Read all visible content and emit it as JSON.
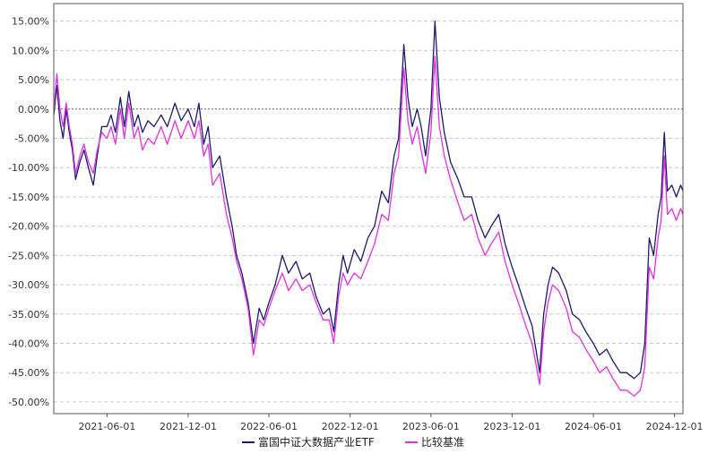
{
  "chart_data": {
    "type": "line",
    "y_unit": "%",
    "ylim": [
      -52,
      18
    ],
    "y_ticks": [
      "15.00%",
      "10.00%",
      "5.00%",
      "0.00%",
      "-5.00%",
      "-10.00%",
      "-15.00%",
      "-20.00%",
      "-25.00%",
      "-30.00%",
      "-35.00%",
      "-40.00%",
      "-45.00%",
      "-50.00%"
    ],
    "x_ticks": [
      "2021-06-01",
      "2021-12-01",
      "2022-06-01",
      "2022-12-01",
      "2023-06-01",
      "2023-12-01",
      "2024-06-01",
      "2024-12-01"
    ],
    "xlim": [
      "2021-02-01",
      "2024-12-20"
    ],
    "grid": true,
    "legend_position": "bottom",
    "series": [
      {
        "name": "富国中证大数据产业ETF",
        "color": "#1a1a6e",
        "points": [
          [
            "2021-02-01",
            -1
          ],
          [
            "2021-02-08",
            4
          ],
          [
            "2021-02-15",
            -2
          ],
          [
            "2021-02-22",
            -5
          ],
          [
            "2021-03-01",
            0
          ],
          [
            "2021-03-08",
            -4
          ],
          [
            "2021-03-15",
            -7
          ],
          [
            "2021-03-22",
            -12
          ],
          [
            "2021-04-01",
            -9
          ],
          [
            "2021-04-10",
            -7
          ],
          [
            "2021-04-20",
            -10
          ],
          [
            "2021-05-01",
            -13
          ],
          [
            "2021-05-10",
            -8
          ],
          [
            "2021-05-20",
            -3
          ],
          [
            "2021-06-01",
            -3
          ],
          [
            "2021-06-10",
            -1
          ],
          [
            "2021-06-20",
            -4
          ],
          [
            "2021-07-01",
            2
          ],
          [
            "2021-07-10",
            -3
          ],
          [
            "2021-07-20",
            3
          ],
          [
            "2021-08-01",
            -3
          ],
          [
            "2021-08-10",
            -1
          ],
          [
            "2021-08-20",
            -4
          ],
          [
            "2021-09-01",
            -2
          ],
          [
            "2021-09-15",
            -3
          ],
          [
            "2021-10-01",
            -1
          ],
          [
            "2021-10-15",
            -3
          ],
          [
            "2021-11-01",
            1
          ],
          [
            "2021-11-15",
            -2
          ],
          [
            "2021-12-01",
            0
          ],
          [
            "2021-12-15",
            -3
          ],
          [
            "2021-12-25",
            1
          ],
          [
            "2022-01-05",
            -6
          ],
          [
            "2022-01-15",
            -3
          ],
          [
            "2022-01-25",
            -10
          ],
          [
            "2022-02-10",
            -8
          ],
          [
            "2022-02-25",
            -15
          ],
          [
            "2022-03-10",
            -20
          ],
          [
            "2022-03-20",
            -25
          ],
          [
            "2022-04-01",
            -28
          ],
          [
            "2022-04-15",
            -33
          ],
          [
            "2022-04-27",
            -40
          ],
          [
            "2022-05-10",
            -34
          ],
          [
            "2022-05-20",
            -36
          ],
          [
            "2022-06-01",
            -33
          ],
          [
            "2022-06-15",
            -30
          ],
          [
            "2022-07-01",
            -25
          ],
          [
            "2022-07-15",
            -28
          ],
          [
            "2022-08-01",
            -26
          ],
          [
            "2022-08-15",
            -29
          ],
          [
            "2022-09-01",
            -28
          ],
          [
            "2022-09-15",
            -32
          ],
          [
            "2022-10-01",
            -35
          ],
          [
            "2022-10-15",
            -34
          ],
          [
            "2022-10-25",
            -38
          ],
          [
            "2022-11-05",
            -30
          ],
          [
            "2022-11-15",
            -25
          ],
          [
            "2022-11-25",
            -28
          ],
          [
            "2022-12-10",
            -24
          ],
          [
            "2022-12-25",
            -26
          ],
          [
            "2023-01-10",
            -22
          ],
          [
            "2023-01-25",
            -20
          ],
          [
            "2023-02-10",
            -14
          ],
          [
            "2023-02-25",
            -16
          ],
          [
            "2023-03-10",
            -8
          ],
          [
            "2023-03-20",
            -5
          ],
          [
            "2023-04-01",
            11
          ],
          [
            "2023-04-10",
            2
          ],
          [
            "2023-04-20",
            -3
          ],
          [
            "2023-05-01",
            0
          ],
          [
            "2023-05-10",
            -3
          ],
          [
            "2023-05-20",
            -8
          ],
          [
            "2023-06-01",
            0
          ],
          [
            "2023-06-10",
            15
          ],
          [
            "2023-06-20",
            2
          ],
          [
            "2023-07-01",
            -4
          ],
          [
            "2023-07-15",
            -9
          ],
          [
            "2023-08-01",
            -12
          ],
          [
            "2023-08-15",
            -15
          ],
          [
            "2023-09-01",
            -15
          ],
          [
            "2023-09-15",
            -19
          ],
          [
            "2023-10-01",
            -22
          ],
          [
            "2023-10-15",
            -20
          ],
          [
            "2023-11-01",
            -18
          ],
          [
            "2023-11-15",
            -23
          ],
          [
            "2023-12-01",
            -27
          ],
          [
            "2023-12-15",
            -30
          ],
          [
            "2024-01-01",
            -34
          ],
          [
            "2024-01-15",
            -37
          ],
          [
            "2024-02-01",
            -45
          ],
          [
            "2024-02-10",
            -35
          ],
          [
            "2024-02-20",
            -30
          ],
          [
            "2024-03-01",
            -27
          ],
          [
            "2024-03-15",
            -28
          ],
          [
            "2024-04-01",
            -31
          ],
          [
            "2024-04-15",
            -35
          ],
          [
            "2024-05-01",
            -36
          ],
          [
            "2024-05-15",
            -38
          ],
          [
            "2024-06-01",
            -40
          ],
          [
            "2024-06-15",
            -42
          ],
          [
            "2024-07-01",
            -41
          ],
          [
            "2024-07-15",
            -43
          ],
          [
            "2024-08-01",
            -45
          ],
          [
            "2024-08-15",
            -45
          ],
          [
            "2024-09-01",
            -46
          ],
          [
            "2024-09-15",
            -45
          ],
          [
            "2024-09-25",
            -40
          ],
          [
            "2024-10-05",
            -22
          ],
          [
            "2024-10-15",
            -25
          ],
          [
            "2024-10-25",
            -18
          ],
          [
            "2024-11-01",
            -15
          ],
          [
            "2024-11-08",
            -4
          ],
          [
            "2024-11-15",
            -14
          ],
          [
            "2024-11-25",
            -13
          ],
          [
            "2024-12-05",
            -15
          ],
          [
            "2024-12-15",
            -13
          ],
          [
            "2024-12-20",
            -14
          ]
        ]
      },
      {
        "name": "比较基准",
        "color": "#e52de5",
        "points": [
          [
            "2021-02-01",
            0
          ],
          [
            "2021-02-08",
            6
          ],
          [
            "2021-02-15",
            0
          ],
          [
            "2021-02-22",
            -3
          ],
          [
            "2021-03-01",
            1
          ],
          [
            "2021-03-08",
            -3
          ],
          [
            "2021-03-15",
            -6
          ],
          [
            "2021-03-22",
            -11
          ],
          [
            "2021-04-01",
            -8
          ],
          [
            "2021-04-10",
            -6
          ],
          [
            "2021-04-20",
            -9
          ],
          [
            "2021-05-01",
            -11
          ],
          [
            "2021-05-10",
            -7
          ],
          [
            "2021-05-20",
            -4
          ],
          [
            "2021-06-01",
            -5
          ],
          [
            "2021-06-10",
            -3
          ],
          [
            "2021-06-20",
            -6
          ],
          [
            "2021-07-01",
            0
          ],
          [
            "2021-07-10",
            -5
          ],
          [
            "2021-07-20",
            1
          ],
          [
            "2021-08-01",
            -5
          ],
          [
            "2021-08-10",
            -3
          ],
          [
            "2021-08-20",
            -7
          ],
          [
            "2021-09-01",
            -5
          ],
          [
            "2021-09-15",
            -6
          ],
          [
            "2021-10-01",
            -3
          ],
          [
            "2021-10-15",
            -6
          ],
          [
            "2021-11-01",
            -2
          ],
          [
            "2021-11-15",
            -5
          ],
          [
            "2021-12-01",
            -2
          ],
          [
            "2021-12-15",
            -5
          ],
          [
            "2021-12-25",
            -2
          ],
          [
            "2022-01-05",
            -8
          ],
          [
            "2022-01-15",
            -6
          ],
          [
            "2022-01-25",
            -13
          ],
          [
            "2022-02-10",
            -11
          ],
          [
            "2022-02-25",
            -18
          ],
          [
            "2022-03-10",
            -22
          ],
          [
            "2022-03-20",
            -26
          ],
          [
            "2022-04-01",
            -29
          ],
          [
            "2022-04-15",
            -34
          ],
          [
            "2022-04-27",
            -42
          ],
          [
            "2022-05-10",
            -36
          ],
          [
            "2022-05-20",
            -37
          ],
          [
            "2022-06-01",
            -34
          ],
          [
            "2022-06-15",
            -31
          ],
          [
            "2022-07-01",
            -28
          ],
          [
            "2022-07-15",
            -31
          ],
          [
            "2022-08-01",
            -29
          ],
          [
            "2022-08-15",
            -31
          ],
          [
            "2022-09-01",
            -30
          ],
          [
            "2022-09-15",
            -33
          ],
          [
            "2022-10-01",
            -36
          ],
          [
            "2022-10-15",
            -36
          ],
          [
            "2022-10-25",
            -40
          ],
          [
            "2022-11-05",
            -32
          ],
          [
            "2022-11-15",
            -28
          ],
          [
            "2022-11-25",
            -30
          ],
          [
            "2022-12-10",
            -28
          ],
          [
            "2022-12-25",
            -29
          ],
          [
            "2023-01-10",
            -26
          ],
          [
            "2023-01-25",
            -23
          ],
          [
            "2023-02-10",
            -18
          ],
          [
            "2023-02-25",
            -19
          ],
          [
            "2023-03-10",
            -11
          ],
          [
            "2023-03-20",
            -8
          ],
          [
            "2023-04-01",
            7
          ],
          [
            "2023-04-10",
            -2
          ],
          [
            "2023-04-20",
            -6
          ],
          [
            "2023-05-01",
            -3
          ],
          [
            "2023-05-10",
            -7
          ],
          [
            "2023-05-20",
            -11
          ],
          [
            "2023-06-01",
            -4
          ],
          [
            "2023-06-10",
            9
          ],
          [
            "2023-06-20",
            -3
          ],
          [
            "2023-07-01",
            -8
          ],
          [
            "2023-07-15",
            -12
          ],
          [
            "2023-08-01",
            -16
          ],
          [
            "2023-08-15",
            -19
          ],
          [
            "2023-09-01",
            -18
          ],
          [
            "2023-09-15",
            -22
          ],
          [
            "2023-10-01",
            -25
          ],
          [
            "2023-10-15",
            -23
          ],
          [
            "2023-11-01",
            -21
          ],
          [
            "2023-11-15",
            -26
          ],
          [
            "2023-12-01",
            -30
          ],
          [
            "2023-12-15",
            -33
          ],
          [
            "2024-01-01",
            -37
          ],
          [
            "2024-01-15",
            -40
          ],
          [
            "2024-02-01",
            -47
          ],
          [
            "2024-02-10",
            -38
          ],
          [
            "2024-02-20",
            -33
          ],
          [
            "2024-03-01",
            -30
          ],
          [
            "2024-03-15",
            -31
          ],
          [
            "2024-04-01",
            -34
          ],
          [
            "2024-04-15",
            -38
          ],
          [
            "2024-05-01",
            -39
          ],
          [
            "2024-05-15",
            -41
          ],
          [
            "2024-06-01",
            -43
          ],
          [
            "2024-06-15",
            -45
          ],
          [
            "2024-07-01",
            -44
          ],
          [
            "2024-07-15",
            -46
          ],
          [
            "2024-08-01",
            -48
          ],
          [
            "2024-08-15",
            -48
          ],
          [
            "2024-09-01",
            -49
          ],
          [
            "2024-09-15",
            -48
          ],
          [
            "2024-09-25",
            -44
          ],
          [
            "2024-10-05",
            -27
          ],
          [
            "2024-10-15",
            -29
          ],
          [
            "2024-10-25",
            -22
          ],
          [
            "2024-11-01",
            -19
          ],
          [
            "2024-11-08",
            -8
          ],
          [
            "2024-11-15",
            -18
          ],
          [
            "2024-11-25",
            -17
          ],
          [
            "2024-12-05",
            -19
          ],
          [
            "2024-12-15",
            -17
          ],
          [
            "2024-12-20",
            -18
          ]
        ]
      }
    ]
  }
}
